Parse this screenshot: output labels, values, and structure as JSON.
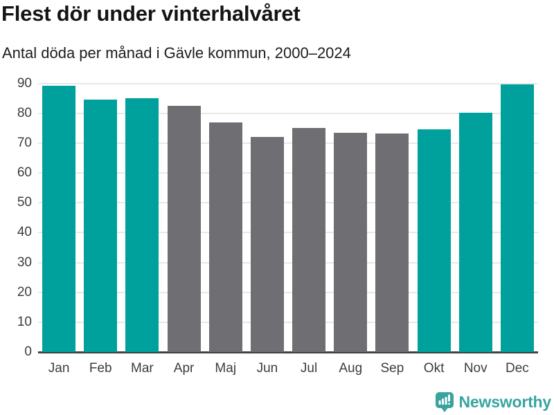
{
  "chart_data": {
    "type": "bar",
    "title": "Flest dör under vinterhalvåret",
    "subtitle": "Antal döda per månad i Gävle kommun, 2000–2024",
    "categories": [
      "Jan",
      "Feb",
      "Mar",
      "Apr",
      "Maj",
      "Jun",
      "Jul",
      "Aug",
      "Sep",
      "Okt",
      "Nov",
      "Dec"
    ],
    "values": [
      89.3,
      84.6,
      85.1,
      82.5,
      77.0,
      72.0,
      75.0,
      73.5,
      73.3,
      74.7,
      80.2,
      89.6
    ],
    "bar_colors": [
      "teal",
      "teal",
      "teal",
      "gray",
      "gray",
      "gray",
      "gray",
      "gray",
      "gray",
      "teal",
      "teal",
      "teal"
    ],
    "xlabel": "",
    "ylabel": "",
    "ylim": [
      0,
      92
    ],
    "yticks": [
      0,
      10,
      20,
      30,
      40,
      50,
      60,
      70,
      80,
      90
    ],
    "grid": "horizontal",
    "legend": "none"
  },
  "colors": {
    "teal": "#00a09c",
    "gray": "#6e6e73",
    "axis": "#414141",
    "gridline": "#e8e8e8",
    "tick_label": "#3c3c3c",
    "title_text": "#141414",
    "logo_teal": "#38a4a0"
  },
  "logo": {
    "text": "Newsworthy",
    "icon": "newsworthy-chart-bubble-icon"
  }
}
